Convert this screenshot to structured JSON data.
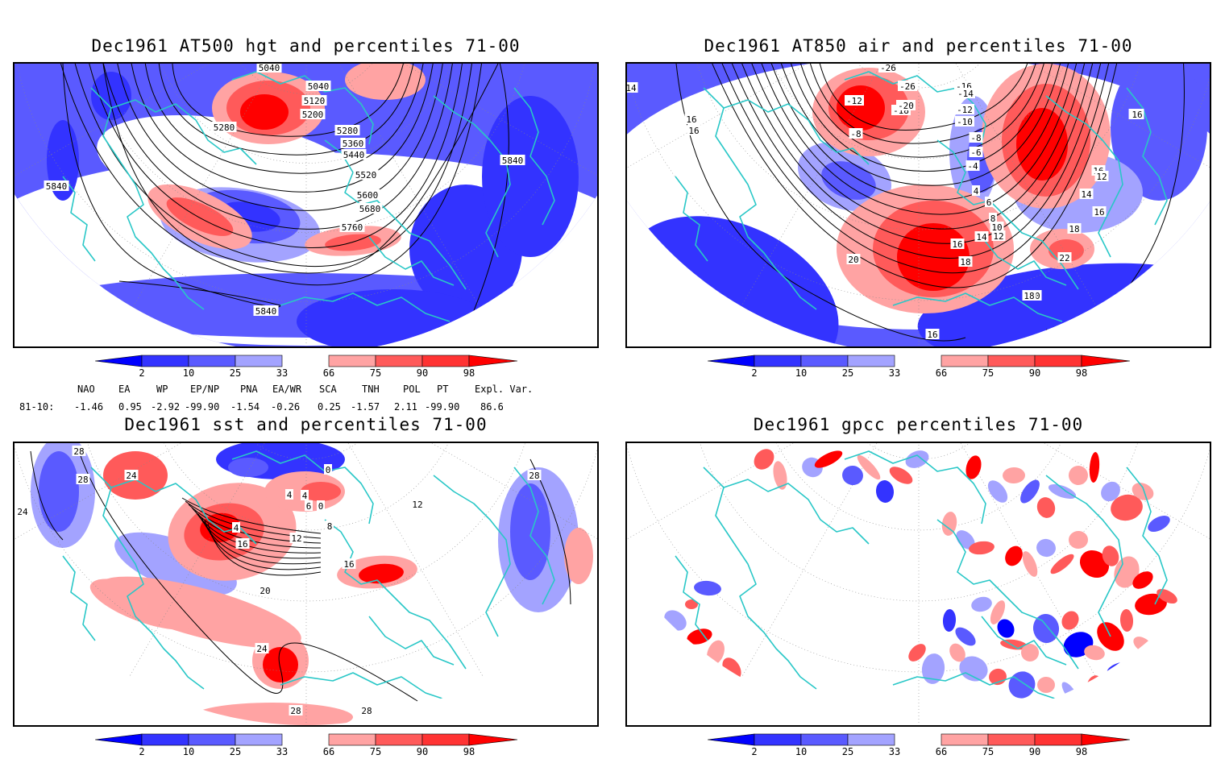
{
  "colors": {
    "blue_deep": "#0000ff",
    "blue_mid": "#3333ff",
    "blue_med": "#5a5aff",
    "blue_light": "#a3a3ff",
    "red_light": "#ffa3a3",
    "red_med": "#ff5a5a",
    "red_mid": "#ff3333",
    "red_deep": "#ff0000",
    "coast": "#29c7c7",
    "contour": "#000000"
  },
  "colorbar": {
    "labels": [
      "2",
      "10",
      "25",
      "33",
      "66",
      "75",
      "90",
      "98"
    ]
  },
  "panels": [
    {
      "id": "hgt500",
      "title": "Dec1961 AT500 hgt and percentiles 71-00",
      "contour_labels": [
        "5040",
        "5040",
        "5120",
        "5200",
        "5280",
        "5280",
        "5360",
        "5440",
        "5520",
        "5600",
        "5680",
        "5760",
        "5840",
        "5840",
        "5840"
      ]
    },
    {
      "id": "air850",
      "title": "Dec1961 AT850 air and percentiles 71-00",
      "contour_labels": [
        "-26",
        "-26",
        "-16",
        "-14",
        "-12",
        "-12",
        "-18",
        "-20",
        "-10",
        "-8",
        "-8",
        "-6",
        "-4",
        "4",
        "6",
        "8",
        "10",
        "12",
        "14",
        "16",
        "18",
        "20",
        "16",
        "12",
        "14",
        "16",
        "18",
        "20",
        "22",
        "18",
        "16",
        "16",
        "16",
        "14",
        "14",
        "14",
        "16"
      ]
    },
    {
      "id": "sst",
      "title": "Dec1961 sst and percentiles 71-00",
      "contour_labels": [
        "28",
        "28",
        "24",
        "24",
        "4",
        "0",
        "4",
        "4",
        "6",
        "0",
        "8",
        "12",
        "12",
        "16",
        "16",
        "20",
        "24",
        "28",
        "28",
        "28"
      ]
    },
    {
      "id": "gpcc",
      "title": "Dec1961 gpcc percentiles 71-00",
      "contour_labels": []
    }
  ],
  "indices": {
    "headers": [
      "NAO",
      "EA",
      "WP",
      "EP/NP",
      "PNA",
      "EA/WR",
      "SCA",
      "TNH",
      "POL",
      "PT",
      "Expl. Var."
    ],
    "row_label": "81-10:",
    "values": [
      "-1.46",
      "0.95",
      "-2.92",
      "-99.90",
      "-1.54",
      "-0.26",
      "0.25",
      "-1.57",
      "2.11",
      "-99.90",
      "86.6"
    ]
  }
}
